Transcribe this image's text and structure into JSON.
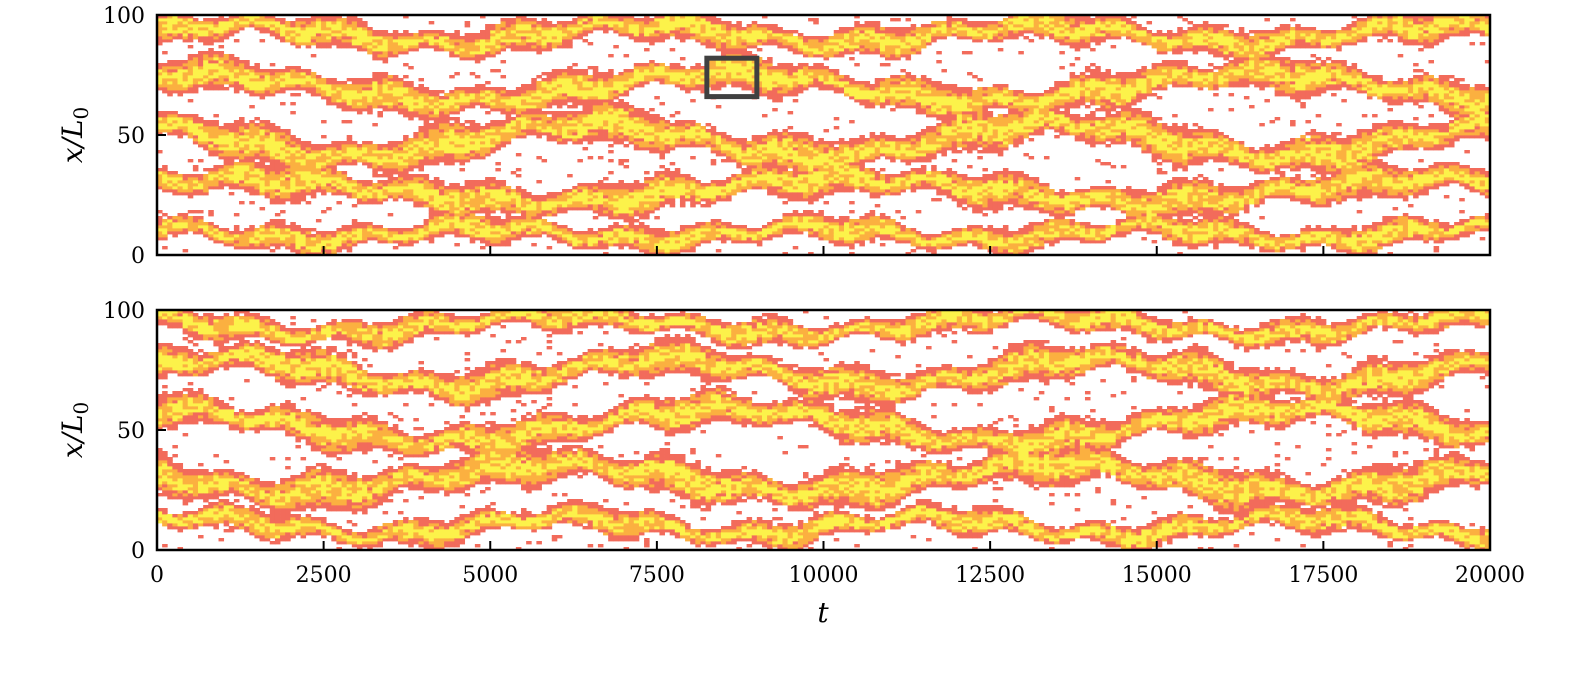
{
  "chart_data": [
    {
      "type": "heatmap",
      "panel": "top",
      "ylabel": "x/L0",
      "ylabel_base": "x/L",
      "ylabel_sub": "0",
      "xlim": [
        0,
        20000
      ],
      "ylim": [
        0,
        100
      ],
      "xticks": [
        0,
        2500,
        5000,
        7500,
        10000,
        12500,
        15000,
        17500,
        20000
      ],
      "yticks": [
        0,
        50,
        100
      ],
      "ytick_labels": [
        "0",
        "50",
        "100"
      ],
      "xtick_labels_shown": false,
      "grid": false,
      "colors": {
        "background": "#ffffff",
        "low": "#f26b5b",
        "mid": "#fbb040",
        "high": "#fcf24a"
      },
      "bands": [
        {
          "center": 92,
          "width": 7,
          "phase": 0.3,
          "wave_amp": 4,
          "wave_period": 6000
        },
        {
          "center": 70,
          "width": 8,
          "phase": 1.2,
          "wave_amp": 6,
          "wave_period": 8000
        },
        {
          "center": 48,
          "width": 9,
          "phase": 2.1,
          "wave_amp": 7,
          "wave_period": 7000
        },
        {
          "center": 27,
          "width": 8,
          "phase": 0.7,
          "wave_amp": 5,
          "wave_period": 9000
        },
        {
          "center": 9,
          "width": 6,
          "phase": 1.8,
          "wave_amp": 3,
          "wave_period": 5000
        }
      ],
      "inset_box": {
        "t": [
          8250,
          9000
        ],
        "x": [
          66,
          82
        ],
        "color": "#404040"
      }
    },
    {
      "type": "heatmap",
      "panel": "bottom",
      "ylabel": "x/L0",
      "ylabel_base": "x/L",
      "ylabel_sub": "0",
      "xlabel": "t",
      "xlim": [
        0,
        20000
      ],
      "ylim": [
        0,
        100
      ],
      "xticks": [
        0,
        2500,
        5000,
        7500,
        10000,
        12500,
        15000,
        17500,
        20000
      ],
      "xtick_labels": [
        "0",
        "2500",
        "5000",
        "7500",
        "10000",
        "12500",
        "15000",
        "17500",
        "20000"
      ],
      "yticks": [
        0,
        50,
        100
      ],
      "ytick_labels": [
        "0",
        "50",
        "100"
      ],
      "grid": false,
      "colors": {
        "background": "#ffffff",
        "low": "#f26b5b",
        "mid": "#fbb040",
        "high": "#fcf24a"
      },
      "bands": [
        {
          "center": 94,
          "width": 6,
          "phase": 2.4,
          "wave_amp": 4,
          "wave_period": 7000
        },
        {
          "center": 74,
          "width": 8,
          "phase": 0.5,
          "wave_amp": 6,
          "wave_period": 6500
        },
        {
          "center": 52,
          "width": 8,
          "phase": 1.6,
          "wave_amp": 7,
          "wave_period": 8500
        },
        {
          "center": 30,
          "width": 9,
          "phase": 2.9,
          "wave_amp": 6,
          "wave_period": 7500
        },
        {
          "center": 10,
          "width": 6,
          "phase": 0.9,
          "wave_amp": 4,
          "wave_period": 5500
        }
      ]
    }
  ]
}
